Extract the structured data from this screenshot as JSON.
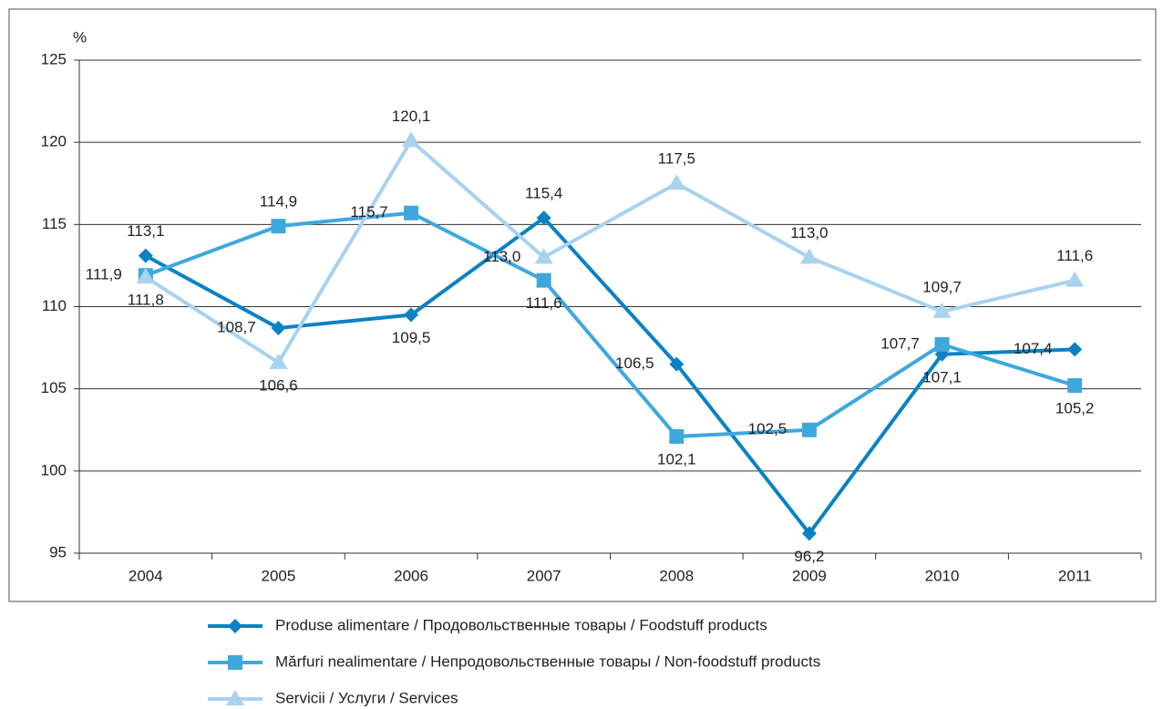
{
  "chart_data": {
    "type": "line",
    "y_label": "%",
    "categories": [
      "2004",
      "2005",
      "2006",
      "2007",
      "2008",
      "2009",
      "2010",
      "2011"
    ],
    "ylim": [
      95,
      125
    ],
    "yticks": [
      95,
      100,
      105,
      110,
      115,
      120,
      125
    ],
    "grid": true,
    "series": [
      {
        "name": "Produse alimentare / Продовольственные товары / Foodstuff products",
        "color": "#0a82c4",
        "marker": "diamond",
        "values": [
          113.1,
          108.7,
          109.5,
          115.4,
          106.5,
          96.2,
          107.1,
          107.4
        ],
        "value_labels": [
          "113,1",
          "108,7",
          "109,5",
          "115,4",
          "106,5",
          "96,2",
          "107,1",
          "107,4"
        ]
      },
      {
        "name": "Mărfuri nealimentare / Непродовольственные товары / Non-foodstuff products",
        "color": "#3ea8dd",
        "marker": "square",
        "values": [
          111.9,
          114.9,
          115.7,
          111.6,
          102.1,
          102.5,
          107.7,
          105.2
        ],
        "value_labels": [
          "111,9",
          "114,9",
          "115,7",
          "111,6",
          "102,1",
          "102,5",
          "107,7",
          "105,2"
        ]
      },
      {
        "name": "Servicii / Услуги / Services",
        "color": "#a8d2ee",
        "marker": "triangle",
        "values": [
          111.8,
          106.6,
          120.1,
          113.0,
          117.5,
          113.0,
          109.7,
          111.6
        ],
        "value_labels": [
          "111,8",
          "106,6",
          "120,1",
          "113,0",
          "117,5",
          "113,0",
          "109,7",
          "111,6"
        ]
      }
    ]
  }
}
